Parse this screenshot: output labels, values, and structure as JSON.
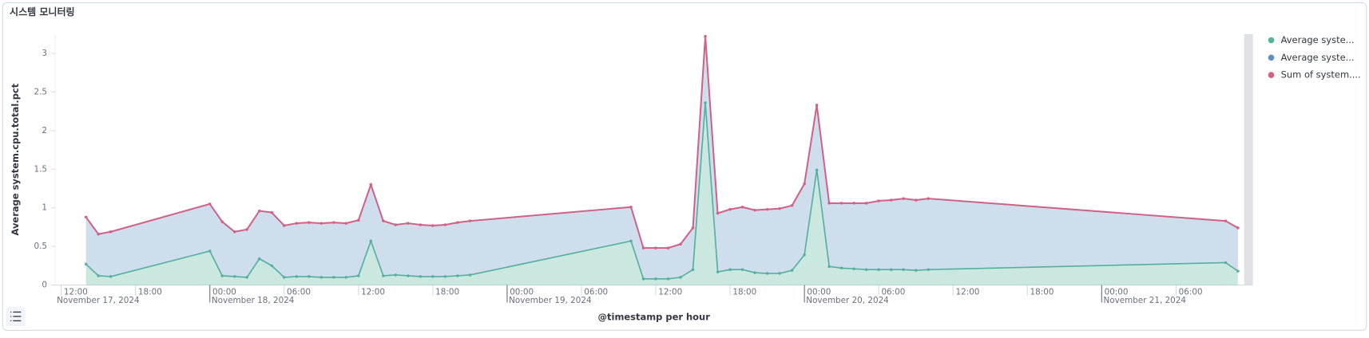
{
  "panel_title": "시스템 모니터링",
  "chart_data": {
    "type": "area",
    "stacked": true,
    "x_label": "@timestamp per hour",
    "y_label": "Average system.cpu.total.pct",
    "x": [
      14,
      15,
      16,
      24,
      25,
      26,
      27,
      28,
      29,
      30,
      31,
      32,
      33,
      34,
      35,
      36,
      37,
      38,
      39,
      40,
      41,
      42,
      43,
      44,
      45,
      58,
      59,
      60,
      61,
      62,
      63,
      64,
      65,
      66,
      67,
      68,
      69,
      70,
      71,
      72,
      73,
      74,
      75,
      76,
      77,
      78,
      79,
      80,
      81,
      82,
      106,
      107
    ],
    "series": [
      {
        "name": "Average syste...",
        "color": "#54B399",
        "type": "area",
        "values": [
          0.27,
          0.12,
          0.11,
          0.44,
          0.12,
          0.11,
          0.1,
          0.34,
          0.25,
          0.1,
          0.11,
          0.11,
          0.1,
          0.1,
          0.1,
          0.12,
          0.57,
          0.12,
          0.13,
          0.12,
          0.11,
          0.11,
          0.11,
          0.12,
          0.13,
          0.57,
          0.08,
          0.08,
          0.08,
          0.1,
          0.2,
          2.36,
          0.17,
          0.2,
          0.2,
          0.16,
          0.15,
          0.15,
          0.19,
          0.39,
          1.49,
          0.24,
          0.22,
          0.21,
          0.2,
          0.2,
          0.2,
          0.2,
          0.19,
          0.2,
          0.29,
          0.18
        ]
      },
      {
        "name": "Average syste...",
        "color": "#6092C0",
        "type": "area",
        "values": [
          0.61,
          0.54,
          0.58,
          0.61,
          0.7,
          0.58,
          0.62,
          0.62,
          0.69,
          0.67,
          0.69,
          0.7,
          0.7,
          0.71,
          0.7,
          0.72,
          0.73,
          0.71,
          0.65,
          0.68,
          0.67,
          0.66,
          0.67,
          0.69,
          0.7,
          0.44,
          0.4,
          0.4,
          0.4,
          0.43,
          0.54,
          0.86,
          0.76,
          0.78,
          0.81,
          0.81,
          0.83,
          0.84,
          0.84,
          0.92,
          0.84,
          0.82,
          0.84,
          0.85,
          0.86,
          0.89,
          0.9,
          0.92,
          0.91,
          0.92,
          0.54,
          0.56
        ]
      },
      {
        "name": "Sum of system....",
        "color": "#D36086",
        "type": "line",
        "values": [
          0.88,
          0.66,
          0.69,
          1.05,
          0.82,
          0.69,
          0.72,
          0.96,
          0.94,
          0.77,
          0.8,
          0.81,
          0.8,
          0.81,
          0.8,
          0.84,
          1.3,
          0.83,
          0.78,
          0.8,
          0.78,
          0.77,
          0.78,
          0.81,
          0.83,
          1.01,
          0.48,
          0.48,
          0.48,
          0.53,
          0.74,
          3.22,
          0.93,
          0.98,
          1.01,
          0.97,
          0.98,
          0.99,
          1.03,
          1.31,
          2.33,
          1.06,
          1.06,
          1.06,
          1.06,
          1.09,
          1.1,
          1.12,
          1.1,
          1.12,
          0.83,
          0.74
        ]
      }
    ],
    "xlim": [
      11.5,
      107.5
    ],
    "xticks": [
      {
        "value": 12,
        "label": "12:00"
      },
      {
        "value": 18,
        "label": "18:00"
      },
      {
        "value": 24,
        "label": "00:00"
      },
      {
        "value": 30,
        "label": "06:00"
      },
      {
        "value": 36,
        "label": "12:00"
      },
      {
        "value": 42,
        "label": "18:00"
      },
      {
        "value": 48,
        "label": "00:00"
      },
      {
        "value": 54,
        "label": "06:00"
      },
      {
        "value": 60,
        "label": "12:00"
      },
      {
        "value": 66,
        "label": "18:00"
      },
      {
        "value": 72,
        "label": "00:00"
      },
      {
        "value": 78,
        "label": "06:00"
      },
      {
        "value": 84,
        "label": "12:00"
      },
      {
        "value": 90,
        "label": "18:00"
      },
      {
        "value": 96,
        "label": "00:00"
      },
      {
        "value": 102,
        "label": "06:00"
      }
    ],
    "x_date_labels": [
      {
        "value": 12,
        "label": "November 17, 2024"
      },
      {
        "value": 24,
        "label": "November 18, 2024"
      },
      {
        "value": 48,
        "label": "November 19, 2024"
      },
      {
        "value": 72,
        "label": "November 20, 2024"
      },
      {
        "value": 96,
        "label": "November 21, 2024"
      }
    ],
    "ylim": [
      0,
      3.25
    ],
    "yticks": [
      0,
      0.5,
      1,
      1.5,
      2,
      2.5,
      3
    ],
    "legend": "right"
  }
}
